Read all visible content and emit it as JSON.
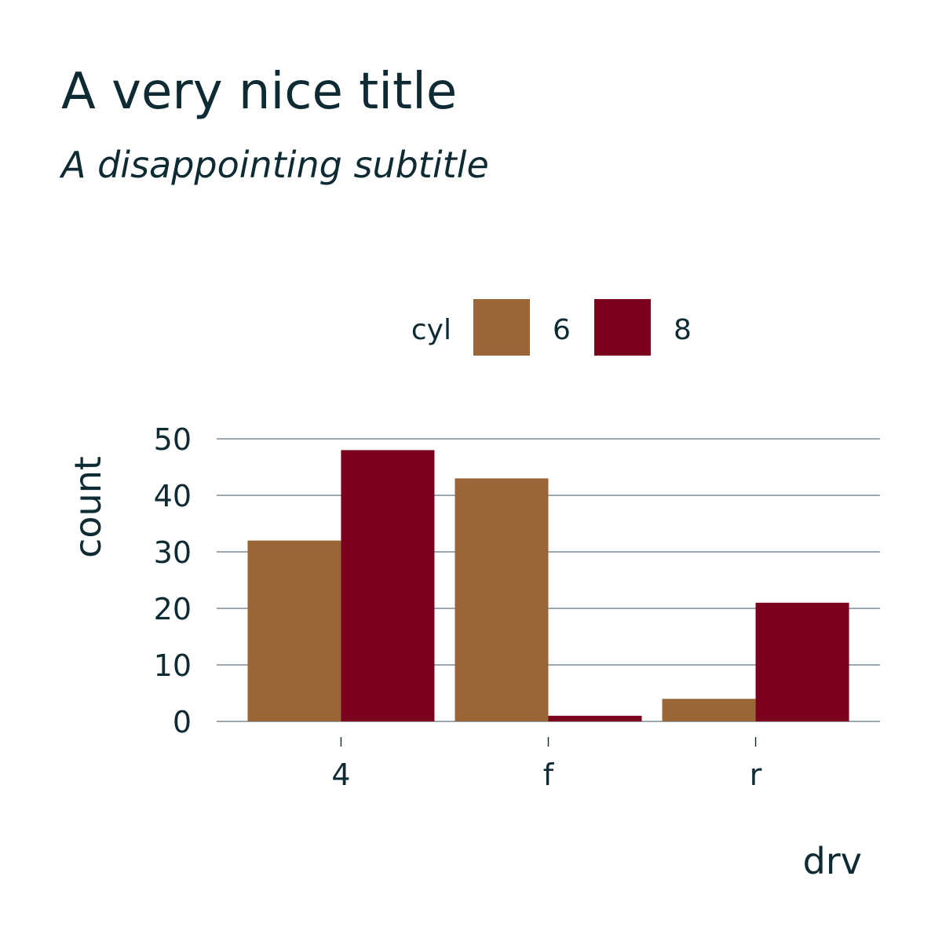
{
  "chart_data": {
    "type": "bar",
    "title": "A very nice title",
    "subtitle": "A disappointing subtitle",
    "xlabel": "drv",
    "ylabel": "count",
    "categories": [
      "4",
      "f",
      "r"
    ],
    "series": [
      {
        "name": "6",
        "values": [
          32,
          43,
          4
        ],
        "color": "#9a6638"
      },
      {
        "name": "8",
        "values": [
          48,
          1,
          21
        ],
        "color": "#7a001d"
      }
    ],
    "legend": {
      "title": "cyl",
      "position": "top"
    },
    "ylim": [
      0,
      50
    ],
    "yticks": [
      0,
      10,
      20,
      30,
      40,
      50
    ],
    "grid": "horizontal-major"
  }
}
